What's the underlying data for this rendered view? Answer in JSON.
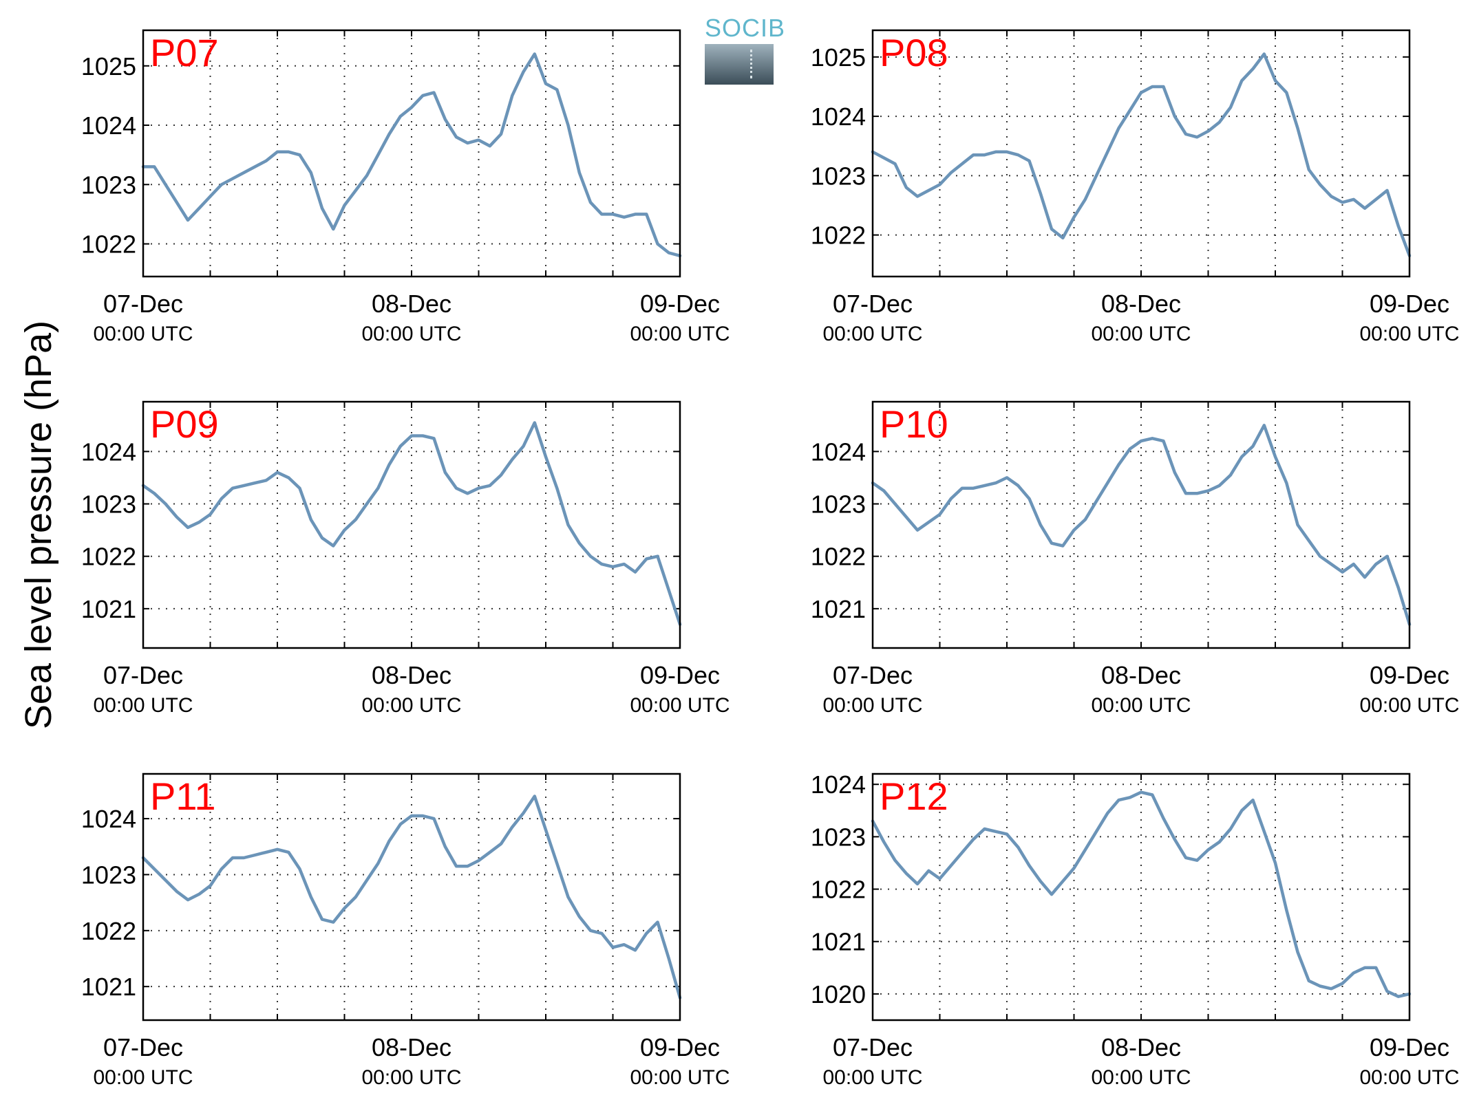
{
  "figure": {
    "ylabel": "Sea level pressure (hPa)",
    "line_color": "#6b94b8",
    "label_color": "#ff0000"
  },
  "logo": {
    "text": "SOCIB",
    "accent": "#5fb6cc"
  },
  "chart_data": [
    {
      "type": "line",
      "title": "P07",
      "x_tick_labels": [
        [
          "07-Dec",
          "00:00 UTC"
        ],
        [
          "08-Dec",
          "00:00 UTC"
        ],
        [
          "09-Dec",
          "00:00 UTC"
        ]
      ],
      "x_ticks": [
        0,
        24,
        48
      ],
      "xlim": [
        0,
        48
      ],
      "ylim": [
        1021.45,
        1025.6
      ],
      "yticks": [
        1022,
        1023,
        1024,
        1025
      ],
      "grid": true,
      "x": [
        0,
        1,
        2,
        3,
        4,
        5,
        6,
        7,
        8,
        9,
        10,
        11,
        12,
        13,
        14,
        15,
        16,
        17,
        18,
        19,
        20,
        21,
        22,
        23,
        24,
        25,
        26,
        27,
        28,
        29,
        30,
        31,
        32,
        33,
        34,
        35,
        36,
        37,
        38,
        39,
        40,
        41,
        42,
        43,
        44,
        45,
        46,
        47,
        48
      ],
      "values": [
        1023.3,
        1023.3,
        1023.0,
        1022.7,
        1022.4,
        1022.6,
        1022.8,
        1023.0,
        1023.1,
        1023.2,
        1023.3,
        1023.4,
        1023.55,
        1023.55,
        1023.5,
        1023.2,
        1022.6,
        1022.25,
        1022.65,
        1022.9,
        1023.15,
        1023.5,
        1023.85,
        1024.15,
        1024.3,
        1024.5,
        1024.55,
        1024.1,
        1023.8,
        1023.7,
        1023.75,
        1023.65,
        1023.85,
        1024.5,
        1024.9,
        1025.2,
        1024.7,
        1024.6,
        1024.0,
        1023.2,
        1022.7,
        1022.5,
        1022.5,
        1022.45,
        1022.5,
        1022.5,
        1022.0,
        1021.85,
        1021.8
      ]
    },
    {
      "type": "line",
      "title": "P08",
      "x_tick_labels": [
        [
          "07-Dec",
          "00:00 UTC"
        ],
        [
          "08-Dec",
          "00:00 UTC"
        ],
        [
          "09-Dec",
          "00:00 UTC"
        ]
      ],
      "x_ticks": [
        0,
        24,
        48
      ],
      "xlim": [
        0,
        48
      ],
      "ylim": [
        1021.3,
        1025.45
      ],
      "yticks": [
        1022,
        1023,
        1024,
        1025
      ],
      "grid": true,
      "x": [
        0,
        1,
        2,
        3,
        4,
        5,
        6,
        7,
        8,
        9,
        10,
        11,
        12,
        13,
        14,
        15,
        16,
        17,
        18,
        19,
        20,
        21,
        22,
        23,
        24,
        25,
        26,
        27,
        28,
        29,
        30,
        31,
        32,
        33,
        34,
        35,
        36,
        37,
        38,
        39,
        40,
        41,
        42,
        43,
        44,
        45,
        46,
        47,
        48
      ],
      "values": [
        1023.4,
        1023.3,
        1023.2,
        1022.8,
        1022.65,
        1022.75,
        1022.85,
        1023.05,
        1023.2,
        1023.35,
        1023.35,
        1023.4,
        1023.4,
        1023.35,
        1023.25,
        1022.7,
        1022.1,
        1021.95,
        1022.3,
        1022.6,
        1023.0,
        1023.4,
        1023.8,
        1024.1,
        1024.4,
        1024.5,
        1024.5,
        1024.0,
        1023.7,
        1023.65,
        1023.75,
        1023.9,
        1024.15,
        1024.6,
        1024.8,
        1025.05,
        1024.6,
        1024.4,
        1023.8,
        1023.1,
        1022.85,
        1022.65,
        1022.55,
        1022.6,
        1022.45,
        1022.6,
        1022.75,
        1022.15,
        1021.65
      ]
    },
    {
      "type": "line",
      "title": "P09",
      "x_tick_labels": [
        [
          "07-Dec",
          "00:00 UTC"
        ],
        [
          "08-Dec",
          "00:00 UTC"
        ],
        [
          "09-Dec",
          "00:00 UTC"
        ]
      ],
      "x_ticks": [
        0,
        24,
        48
      ],
      "xlim": [
        0,
        48
      ],
      "ylim": [
        1020.25,
        1024.95
      ],
      "yticks": [
        1021,
        1022,
        1023,
        1024
      ],
      "grid": true,
      "x": [
        0,
        1,
        2,
        3,
        4,
        5,
        6,
        7,
        8,
        9,
        10,
        11,
        12,
        13,
        14,
        15,
        16,
        17,
        18,
        19,
        20,
        21,
        22,
        23,
        24,
        25,
        26,
        27,
        28,
        29,
        30,
        31,
        32,
        33,
        34,
        35,
        36,
        37,
        38,
        39,
        40,
        41,
        42,
        43,
        44,
        45,
        46,
        47,
        48
      ],
      "values": [
        1023.35,
        1023.2,
        1023.0,
        1022.75,
        1022.55,
        1022.65,
        1022.8,
        1023.1,
        1023.3,
        1023.35,
        1023.4,
        1023.45,
        1023.6,
        1023.5,
        1023.3,
        1022.7,
        1022.35,
        1022.2,
        1022.5,
        1022.7,
        1023.0,
        1023.3,
        1023.75,
        1024.1,
        1024.3,
        1024.3,
        1024.25,
        1023.6,
        1023.3,
        1023.2,
        1023.3,
        1023.35,
        1023.55,
        1023.85,
        1024.1,
        1024.55,
        1023.9,
        1023.3,
        1022.6,
        1022.25,
        1022.0,
        1021.85,
        1021.8,
        1021.85,
        1021.7,
        1021.95,
        1022.0,
        1021.35,
        1020.7
      ]
    },
    {
      "type": "line",
      "title": "P10",
      "x_tick_labels": [
        [
          "07-Dec",
          "00:00 UTC"
        ],
        [
          "08-Dec",
          "00:00 UTC"
        ],
        [
          "09-Dec",
          "00:00 UTC"
        ]
      ],
      "x_ticks": [
        0,
        24,
        48
      ],
      "xlim": [
        0,
        48
      ],
      "ylim": [
        1020.25,
        1024.95
      ],
      "yticks": [
        1021,
        1022,
        1023,
        1024
      ],
      "grid": true,
      "x": [
        0,
        1,
        2,
        3,
        4,
        5,
        6,
        7,
        8,
        9,
        10,
        11,
        12,
        13,
        14,
        15,
        16,
        17,
        18,
        19,
        20,
        21,
        22,
        23,
        24,
        25,
        26,
        27,
        28,
        29,
        30,
        31,
        32,
        33,
        34,
        35,
        36,
        37,
        38,
        39,
        40,
        41,
        42,
        43,
        44,
        45,
        46,
        47,
        48
      ],
      "values": [
        1023.4,
        1023.25,
        1023.0,
        1022.75,
        1022.5,
        1022.65,
        1022.8,
        1023.1,
        1023.3,
        1023.3,
        1023.35,
        1023.4,
        1023.5,
        1023.35,
        1023.1,
        1022.6,
        1022.25,
        1022.2,
        1022.5,
        1022.7,
        1023.05,
        1023.4,
        1023.75,
        1024.05,
        1024.2,
        1024.25,
        1024.2,
        1023.6,
        1023.2,
        1023.2,
        1023.25,
        1023.35,
        1023.55,
        1023.9,
        1024.1,
        1024.5,
        1023.9,
        1023.4,
        1022.6,
        1022.3,
        1022.0,
        1021.85,
        1021.7,
        1021.85,
        1021.6,
        1021.85,
        1022.0,
        1021.4,
        1020.7
      ]
    },
    {
      "type": "line",
      "title": "P11",
      "x_tick_labels": [
        [
          "07-Dec",
          "00:00 UTC"
        ],
        [
          "08-Dec",
          "00:00 UTC"
        ],
        [
          "09-Dec",
          "00:00 UTC"
        ]
      ],
      "x_ticks": [
        0,
        24,
        48
      ],
      "xlim": [
        0,
        48
      ],
      "ylim": [
        1020.4,
        1024.8
      ],
      "yticks": [
        1021,
        1022,
        1023,
        1024
      ],
      "grid": true,
      "x": [
        0,
        1,
        2,
        3,
        4,
        5,
        6,
        7,
        8,
        9,
        10,
        11,
        12,
        13,
        14,
        15,
        16,
        17,
        18,
        19,
        20,
        21,
        22,
        23,
        24,
        25,
        26,
        27,
        28,
        29,
        30,
        31,
        32,
        33,
        34,
        35,
        36,
        37,
        38,
        39,
        40,
        41,
        42,
        43,
        44,
        45,
        46,
        47,
        48
      ],
      "values": [
        1023.3,
        1023.1,
        1022.9,
        1022.7,
        1022.55,
        1022.65,
        1022.8,
        1023.1,
        1023.3,
        1023.3,
        1023.35,
        1023.4,
        1023.45,
        1023.4,
        1023.1,
        1022.6,
        1022.2,
        1022.15,
        1022.4,
        1022.6,
        1022.9,
        1023.2,
        1023.6,
        1023.9,
        1024.05,
        1024.05,
        1024.0,
        1023.5,
        1023.15,
        1023.15,
        1023.25,
        1023.4,
        1023.55,
        1023.85,
        1024.1,
        1024.4,
        1023.8,
        1023.2,
        1022.6,
        1022.25,
        1022.0,
        1021.95,
        1021.7,
        1021.75,
        1021.65,
        1021.95,
        1022.15,
        1021.5,
        1020.8
      ]
    },
    {
      "type": "line",
      "title": "P12",
      "x_tick_labels": [
        [
          "07-Dec",
          "00:00 UTC"
        ],
        [
          "08-Dec",
          "00:00 UTC"
        ],
        [
          "09-Dec",
          "00:00 UTC"
        ]
      ],
      "x_ticks": [
        0,
        24,
        48
      ],
      "xlim": [
        0,
        48
      ],
      "ylim": [
        1019.5,
        1024.2
      ],
      "yticks": [
        1020,
        1021,
        1022,
        1023,
        1024
      ],
      "grid": true,
      "x": [
        0,
        1,
        2,
        3,
        4,
        5,
        6,
        7,
        8,
        9,
        10,
        11,
        12,
        13,
        14,
        15,
        16,
        17,
        18,
        19,
        20,
        21,
        22,
        23,
        24,
        25,
        26,
        27,
        28,
        29,
        30,
        31,
        32,
        33,
        34,
        35,
        36,
        37,
        38,
        39,
        40,
        41,
        42,
        43,
        44,
        45,
        46,
        47,
        48
      ],
      "values": [
        1023.3,
        1022.9,
        1022.55,
        1022.3,
        1022.1,
        1022.35,
        1022.2,
        1022.45,
        1022.7,
        1022.95,
        1023.15,
        1023.1,
        1023.05,
        1022.8,
        1022.45,
        1022.15,
        1021.9,
        1022.15,
        1022.4,
        1022.75,
        1023.1,
        1023.45,
        1023.7,
        1023.75,
        1023.85,
        1023.8,
        1023.35,
        1022.95,
        1022.6,
        1022.55,
        1022.75,
        1022.9,
        1023.15,
        1023.5,
        1023.7,
        1023.1,
        1022.5,
        1021.6,
        1020.8,
        1020.25,
        1020.15,
        1020.1,
        1020.2,
        1020.4,
        1020.5,
        1020.5,
        1020.05,
        1019.95,
        1020.0
      ]
    }
  ]
}
